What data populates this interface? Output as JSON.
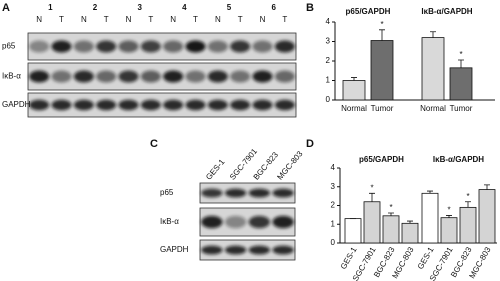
{
  "panel_labels": [
    "A",
    "B",
    "C",
    "D"
  ],
  "blot_a": {
    "lanes": [
      "1",
      "2",
      "3",
      "4",
      "5",
      "6"
    ],
    "lane_types": [
      "N",
      "T",
      "N",
      "T",
      "N",
      "T",
      "N",
      "T",
      "N",
      "T",
      "N",
      "T"
    ],
    "rows": [
      "p65",
      "IκB-α",
      "GAPDH"
    ]
  },
  "blot_c": {
    "lanes": [
      "GES-1",
      "SGC-7901",
      "BGC-823",
      "MGC-803"
    ],
    "rows": [
      "p65",
      "IκB-α",
      "GAPDH"
    ]
  },
  "chart_data": [
    {
      "type": "bar",
      "ylim": [
        0,
        4
      ],
      "yticks": [
        0,
        1,
        2,
        3,
        4
      ],
      "colors": [
        "#d9d9d9",
        "#6e6e6e"
      ],
      "groups": [
        {
          "title": "p65/GAPDH",
          "categories": [
            "Normal",
            "Tumor"
          ],
          "values": [
            1.0,
            3.05
          ],
          "errors": [
            0.15,
            0.55
          ],
          "annotations": [
            {
              "bar": 1,
              "text": "*"
            }
          ]
        },
        {
          "title": "IκB-α/GAPDH",
          "categories": [
            "Normal",
            "Tumor"
          ],
          "values": [
            3.2,
            1.65
          ],
          "errors": [
            0.3,
            0.4
          ],
          "annotations": [
            {
              "bar": 1,
              "text": "*"
            }
          ]
        }
      ]
    },
    {
      "type": "bar",
      "ylim": [
        0,
        4
      ],
      "yticks": [
        0,
        1,
        2,
        3,
        4
      ],
      "colors": [
        "#ffffff",
        "#d4d4d4",
        "#d4d4d4",
        "#d4d4d4"
      ],
      "groups": [
        {
          "title": "p65/GAPDH",
          "categories": [
            "GES-1",
            "SGC-7901",
            "BGC-823",
            "MGC-803"
          ],
          "values": [
            1.3,
            2.2,
            1.45,
            1.05
          ],
          "errors": [
            0,
            0.45,
            0.15,
            0.12
          ],
          "annotations": [
            {
              "bar": 1,
              "text": "*"
            },
            {
              "bar": 2,
              "text": "*"
            }
          ]
        },
        {
          "title": "IκB-α/GAPDH",
          "categories": [
            "GES-1",
            "SGC-7901",
            "BGC-823",
            "MGC-803"
          ],
          "values": [
            2.65,
            1.35,
            1.9,
            2.85
          ],
          "errors": [
            0.12,
            0.12,
            0.3,
            0.25
          ],
          "annotations": [
            {
              "bar": 1,
              "text": "*"
            },
            {
              "bar": 2,
              "text": "*"
            }
          ]
        }
      ]
    }
  ]
}
